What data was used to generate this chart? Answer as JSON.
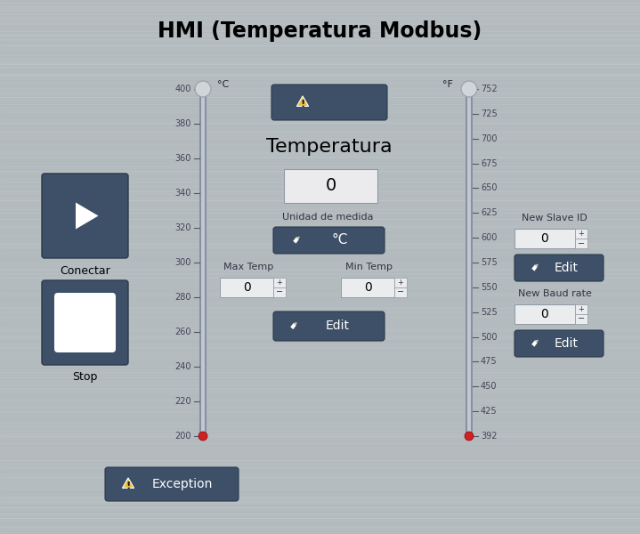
{
  "title": "HMI (Temperatura Modbus)",
  "bg_color": "#b2babe",
  "panel_color": "#3d5068",
  "input_color": "#eaecee",
  "title_fontsize": 17,
  "left_slider_ticks": [
    400,
    380,
    360,
    340,
    320,
    300,
    280,
    260,
    240,
    220,
    200
  ],
  "right_slider_ticks": [
    752,
    725,
    700,
    675,
    650,
    625,
    600,
    575,
    550,
    525,
    500,
    475,
    450,
    425,
    392
  ],
  "left_label": "°C",
  "right_label": "°F",
  "temperatura_label": "Temperatura",
  "temperatura_value": "0",
  "unidad_label": "Unidad de medida",
  "unidad_value": "°C",
  "max_temp_label": "Max Temp",
  "min_temp_label": "Min Temp",
  "max_temp_value": "0",
  "min_temp_value": "0",
  "conectar_label": "Conectar",
  "stop_label": "Stop",
  "exception_label": "Exception",
  "new_slave_label": "New Slave ID",
  "new_baud_label": "New Baud rate",
  "edit_label": "Edit"
}
